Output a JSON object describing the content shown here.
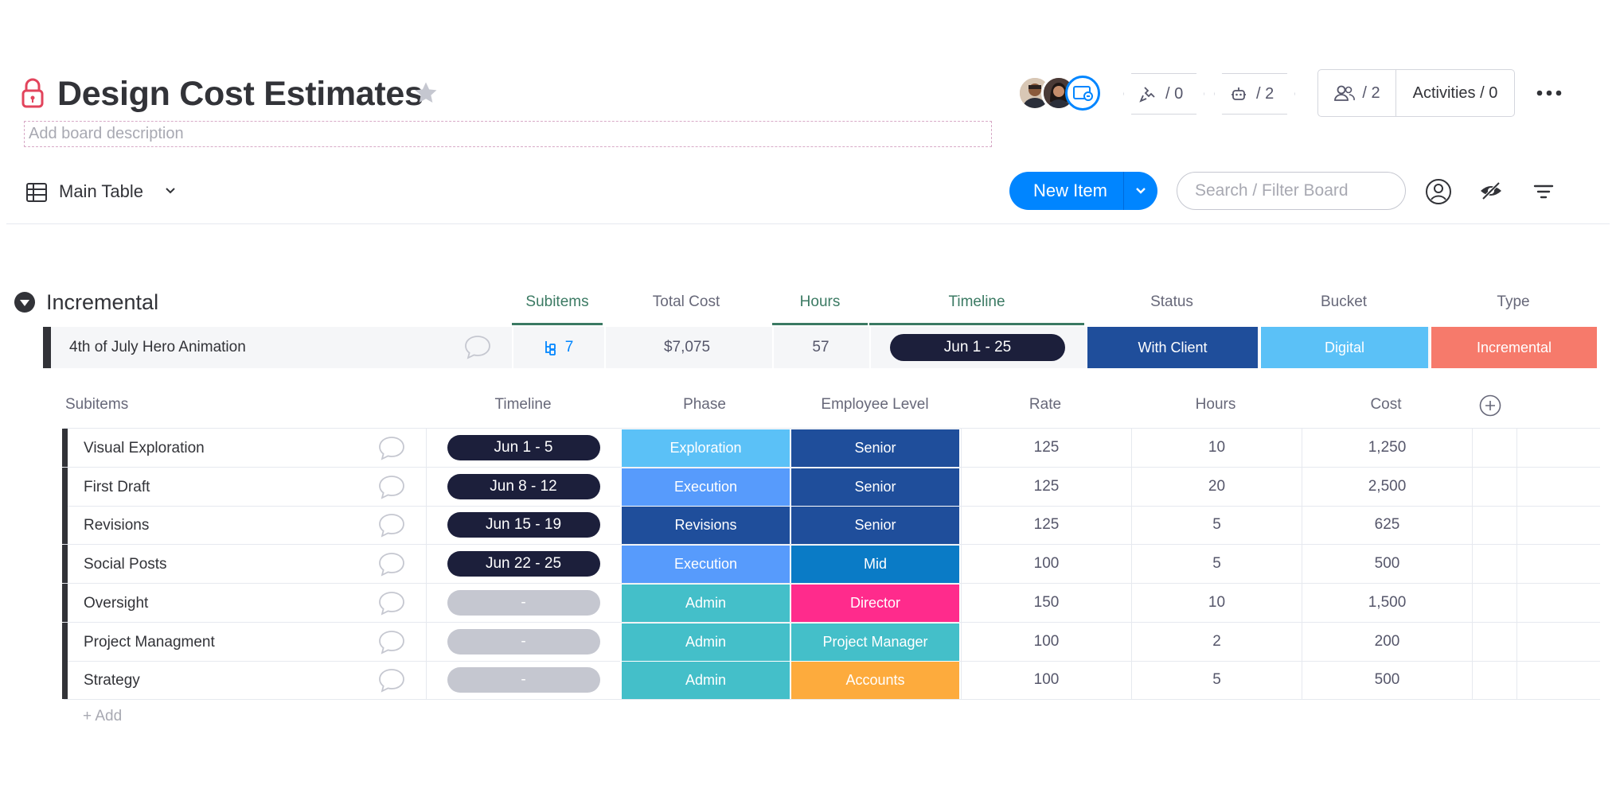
{
  "board": {
    "title": "Design Cost Estimates",
    "description_placeholder": "Add board description"
  },
  "header": {
    "integrations_count": "/ 0",
    "automations_count": "/ 2",
    "members_count": "/ 2",
    "activities_label": "Activities / 0"
  },
  "toolbar": {
    "view_label": "Main Table",
    "new_item_label": "New Item",
    "search_placeholder": "Search / Filter Board"
  },
  "colors": {
    "accent": "#0085ff",
    "group_green": "#3b7a63",
    "with_client": "#1f4e9b",
    "digital": "#5bc1f7",
    "incremental": "#f67a6b",
    "exploration": "#5bc1f7",
    "execution": "#579bfc",
    "revisions": "#1f4e9b",
    "admin": "#44bfc9",
    "senior": "#1f4e9b",
    "mid": "#0a7bc6",
    "director": "#ff2b8c",
    "project_manager": "#44bfc9",
    "accounts": "#fdab3d"
  },
  "group": {
    "title": "Incremental",
    "columns": [
      "Subitems",
      "Total Cost",
      "Hours",
      "Timeline",
      "Status",
      "Bucket",
      "Type"
    ],
    "item": {
      "name": "4th of July Hero Animation",
      "subitems_count": "7",
      "total_cost": "$7,075",
      "hours": "57",
      "timeline": "Jun 1 - 25",
      "status": "With Client",
      "bucket": "Digital",
      "type": "Incremental"
    }
  },
  "subitems": {
    "columns": [
      "Subitems",
      "Timeline",
      "Phase",
      "Employee Level",
      "Rate",
      "Hours",
      "Cost"
    ],
    "rows": [
      {
        "name": "Visual Exploration",
        "timeline": "Jun 1 - 5",
        "phase": "Exploration",
        "level": "Senior",
        "rate": "125",
        "hours": "10",
        "cost": "1,250"
      },
      {
        "name": "First Draft",
        "timeline": "Jun 8 - 12",
        "phase": "Execution",
        "level": "Senior",
        "rate": "125",
        "hours": "20",
        "cost": "2,500"
      },
      {
        "name": "Revisions",
        "timeline": "Jun 15 - 19",
        "phase": "Revisions",
        "level": "Senior",
        "rate": "125",
        "hours": "5",
        "cost": "625"
      },
      {
        "name": "Social Posts",
        "timeline": "Jun 22 - 25",
        "phase": "Execution",
        "level": "Mid",
        "rate": "100",
        "hours": "5",
        "cost": "500"
      },
      {
        "name": "Oversight",
        "timeline": "-",
        "phase": "Admin",
        "level": "Director",
        "rate": "150",
        "hours": "10",
        "cost": "1,500"
      },
      {
        "name": "Project Managment",
        "timeline": "-",
        "phase": "Admin",
        "level": "Project Manager",
        "rate": "100",
        "hours": "2",
        "cost": "200"
      },
      {
        "name": "Strategy",
        "timeline": "-",
        "phase": "Admin",
        "level": "Accounts",
        "rate": "100",
        "hours": "5",
        "cost": "500"
      }
    ],
    "add_label": "+ Add"
  }
}
